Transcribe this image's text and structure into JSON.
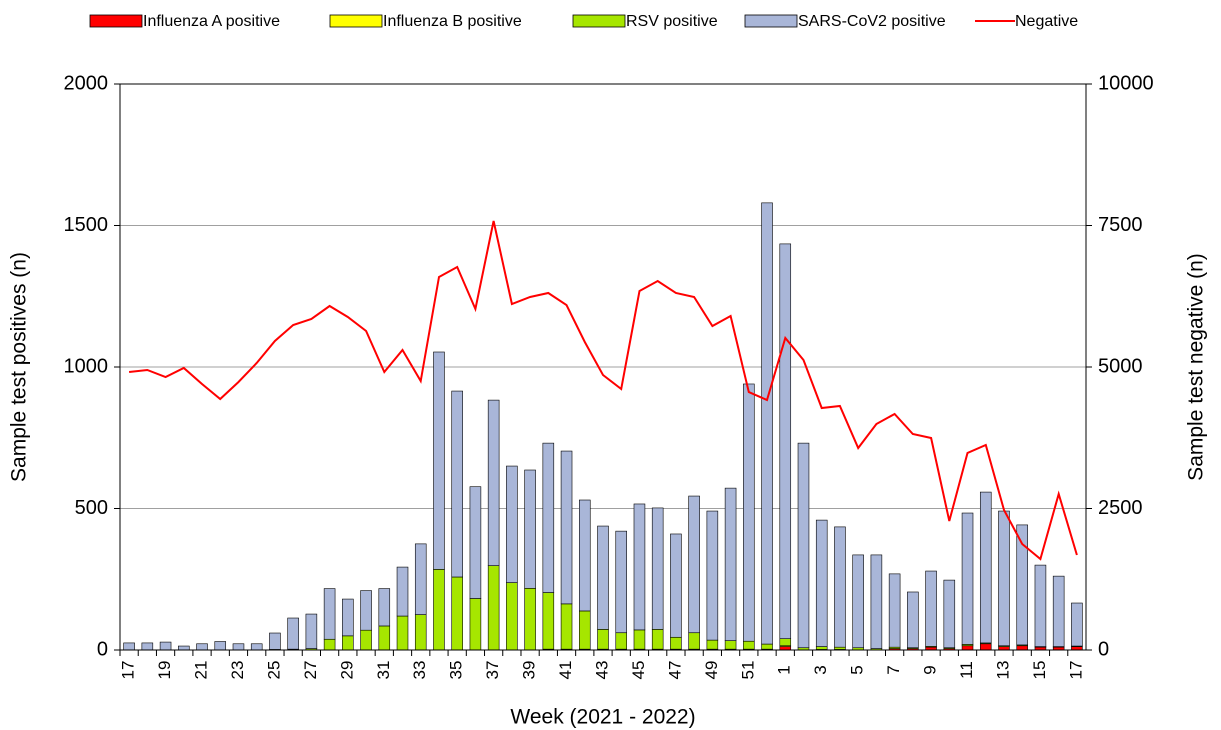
{
  "chart_data": {
    "type": "stacked_bar_line",
    "xlabel": "Week (2021 - 2022)",
    "ylabel": "Sample test positives (n)",
    "y2label": "Sample test negative (n)",
    "categories": [
      "17",
      null,
      "19",
      null,
      "21",
      null,
      "23",
      null,
      "25",
      null,
      "27",
      null,
      "29",
      null,
      "31",
      null,
      "33",
      null,
      "35",
      null,
      "37",
      null,
      "39",
      null,
      "41",
      null,
      "43",
      null,
      "45",
      null,
      "47",
      null,
      "49",
      null,
      "51",
      null,
      "1",
      null,
      "3",
      null,
      "5",
      null,
      "7",
      null,
      "9",
      null,
      "11",
      null,
      "13",
      null,
      "15",
      null,
      "17"
    ],
    "ylim": [
      0,
      2000
    ],
    "yticks": [
      0,
      500,
      1000,
      1500,
      2000
    ],
    "y2lim": [
      0,
      10000
    ],
    "y2ticks": [
      0,
      2500,
      5000,
      7500,
      10000
    ],
    "grid": true,
    "legend": "top",
    "series": [
      {
        "name": "Influenza A positive",
        "color": "#ff0000",
        "values": [
          0,
          0,
          0,
          0,
          0,
          0,
          0,
          0,
          0,
          0,
          0,
          0,
          0,
          0,
          0,
          0,
          0,
          0,
          0,
          0,
          0,
          0,
          0,
          0,
          0,
          0,
          0,
          0,
          0,
          0,
          0,
          0,
          0,
          0,
          0,
          0,
          12,
          0,
          2,
          2,
          0,
          0,
          5,
          5,
          10,
          5,
          15,
          22,
          12,
          15,
          10,
          10,
          12
        ]
      },
      {
        "name": "Influenza B positive",
        "color": "#ffff00",
        "values": [
          0,
          0,
          0,
          0,
          0,
          0,
          0,
          0,
          0,
          0,
          0,
          0,
          0,
          0,
          0,
          0,
          0,
          0,
          0,
          0,
          0,
          0,
          0,
          3,
          3,
          3,
          3,
          3,
          3,
          3,
          3,
          3,
          3,
          3,
          3,
          3,
          3,
          0,
          0,
          0,
          0,
          0,
          0,
          0,
          0,
          0,
          0,
          0,
          0,
          0,
          0,
          0,
          0
        ]
      },
      {
        "name": "RSV positive",
        "color": "#a6e600",
        "values": [
          0,
          0,
          0,
          0,
          0,
          0,
          0,
          0,
          2,
          3,
          5,
          38,
          50,
          70,
          85,
          120,
          125,
          285,
          258,
          182,
          298,
          238,
          218,
          200,
          160,
          135,
          70,
          58,
          68,
          70,
          42,
          58,
          32,
          30,
          28,
          18,
          25,
          8,
          10,
          8,
          8,
          5,
          5,
          3,
          3,
          3,
          5,
          3,
          3,
          3,
          2,
          2,
          2
        ]
      },
      {
        "name": "SARS-CoV2 positive",
        "color": "#a9b6d8",
        "values": [
          25,
          25,
          28,
          14,
          22,
          30,
          22,
          22,
          58,
          110,
          122,
          179,
          130,
          140,
          132,
          173,
          250,
          768,
          657,
          395,
          585,
          412,
          418,
          528,
          540,
          392,
          365,
          359,
          445,
          429,
          365,
          483,
          456,
          539,
          909,
          1559,
          1395,
          723,
          447,
          425,
          328,
          331,
          259,
          197,
          266,
          239,
          464,
          533,
          476,
          424,
          288,
          249,
          152
        ]
      },
      {
        "name": "Negative",
        "color": "#ff0000",
        "line": true,
        "axis": "y2",
        "values": [
          4912,
          4947,
          4823,
          4982,
          4700,
          4435,
          4735,
          5071,
          5459,
          5742,
          5848,
          6078,
          5883,
          5636,
          4912,
          5300,
          4753,
          6590,
          6767,
          6025,
          7580,
          6113,
          6237,
          6307,
          6095,
          5442,
          4859,
          4611,
          6343,
          6519,
          6307,
          6237,
          5724,
          5901,
          4558,
          4417,
          5512,
          5124,
          4276,
          4311,
          3569,
          3993,
          4170,
          3816,
          3746,
          2279,
          3481,
          3622,
          2473,
          1873,
          1608,
          2756,
          1678
        ]
      }
    ]
  }
}
